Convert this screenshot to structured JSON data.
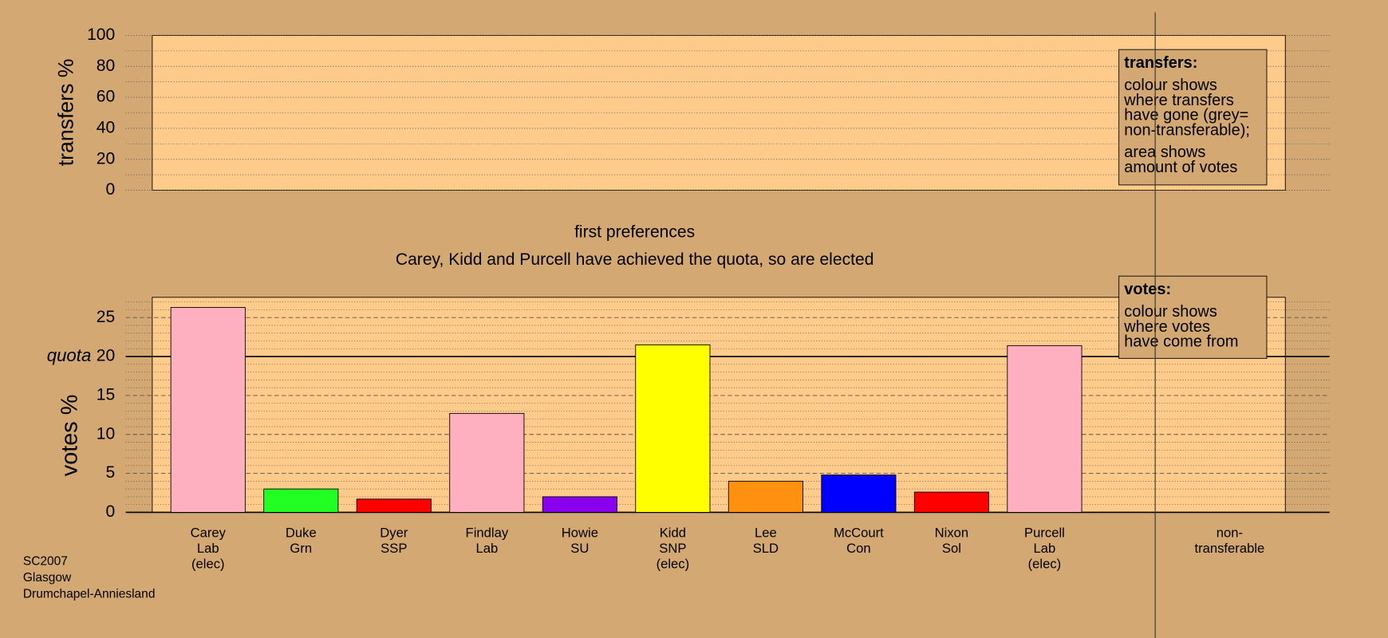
{
  "chart_data": [
    {
      "type": "bar",
      "y_label": "transfers %",
      "ylim": [
        0,
        100
      ],
      "yticks": [
        0,
        20,
        40,
        60,
        80,
        100
      ],
      "minor_yticks": [
        10,
        30,
        50,
        70,
        90
      ],
      "note": {
        "title": "transfers:",
        "paragraphs": [
          [
            "colour shows",
            "where transfers",
            "have gone (grey=",
            "non-transferable);"
          ],
          [
            "area shows",
            "amount of votes"
          ]
        ]
      }
    },
    {
      "type": "bar",
      "title": "first preferences",
      "subtitle": "Carey, Kidd and Purcell have achieved the quota, so are elected",
      "y_label": "votes %",
      "categories": [
        [
          "Carey",
          "Lab",
          "(elec)"
        ],
        [
          "Duke",
          "Grn"
        ],
        [
          "Dyer",
          "SSP"
        ],
        [
          "Findlay",
          "Lab"
        ],
        [
          "Howie",
          "SU"
        ],
        [
          "Kidd",
          "SNP",
          "(elec)"
        ],
        [
          "Lee",
          "SLD"
        ],
        [
          "McCourt",
          "Con"
        ],
        [
          "Nixon",
          "Sol"
        ],
        [
          "Purcell",
          "Lab",
          "(elec)"
        ],
        [
          "non-",
          "transferable"
        ]
      ],
      "values": [
        26.3,
        3.0,
        1.7,
        12.7,
        2.0,
        21.5,
        4.0,
        4.8,
        2.6,
        21.4,
        null
      ],
      "colors": [
        "#ffb0c0",
        "#22ff22",
        "#ff0000",
        "#ffb0c0",
        "#8800ee",
        "#ffff00",
        "#ff9010",
        "#0000ff",
        "#ff0000",
        "#ffb0c0",
        null
      ],
      "ylim": [
        0,
        27.6
      ],
      "yticks": [
        0,
        5,
        10,
        15,
        20,
        25
      ],
      "minor_yticks": [
        1,
        2,
        3,
        4,
        6,
        7,
        8,
        9,
        11,
        12,
        13,
        14,
        16,
        17,
        18,
        19,
        21,
        22,
        23,
        24,
        26,
        27
      ],
      "quota": {
        "value": 20,
        "label": "quota"
      },
      "note": {
        "title": "votes:",
        "paragraphs": [
          [
            "colour shows",
            "where votes",
            "have come from"
          ]
        ]
      }
    }
  ],
  "footer": [
    "SC2007",
    "Glasgow",
    "Drumchapel-Anniesland"
  ]
}
